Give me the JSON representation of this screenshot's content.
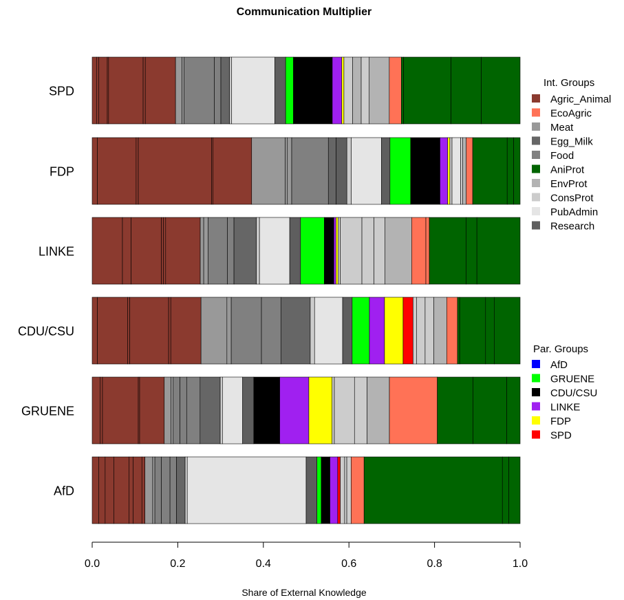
{
  "chart_data": {
    "type": "bar",
    "orientation": "horizontal",
    "stacked": true,
    "title": "Communication Multiplier",
    "xlabel": "Share of External Knowledge",
    "ylabel": "",
    "xlim": [
      0,
      1
    ],
    "x_ticks": [
      "0.0",
      "0.2",
      "0.4",
      "0.6",
      "0.8",
      "1.0"
    ],
    "categories": [
      "SPD",
      "FDP",
      "LINKE",
      "CDU/CSU",
      "GRUENE",
      "AfD"
    ],
    "legend_int": {
      "title": "Int. Groups",
      "items": [
        {
          "label": "Agric_Animal",
          "color": "#8B3A2F"
        },
        {
          "label": "EcoAgric",
          "color": "#FF7256"
        },
        {
          "label": "Meat",
          "color": "#999999"
        },
        {
          "label": "Egg_Milk",
          "color": "#666666"
        },
        {
          "label": "Food",
          "color": "#808080"
        },
        {
          "label": "AniProt",
          "color": "#006400"
        },
        {
          "label": "EnvProt",
          "color": "#B3B3B3"
        },
        {
          "label": "ConsProt",
          "color": "#CCCCCC"
        },
        {
          "label": "PubAdmin",
          "color": "#E5E5E5"
        },
        {
          "label": "Research",
          "color": "#5E5E5E"
        }
      ]
    },
    "legend_par": {
      "title": "Par. Groups",
      "items": [
        {
          "label": "AfD",
          "color": "#0000FF"
        },
        {
          "label": "GRUENE",
          "color": "#00FF00"
        },
        {
          "label": "CDU/CSU",
          "color": "#000000"
        },
        {
          "label": "LINKE",
          "color": "#A020F0"
        },
        {
          "label": "FDP",
          "color": "#FFFF00"
        },
        {
          "label": "SPD",
          "color": "#FF0000"
        }
      ]
    },
    "series": [
      {
        "category": "SPD",
        "segments": [
          [
            0.01,
            "#8B3A2F"
          ],
          [
            0.005,
            "#8B3A2F"
          ],
          [
            0.02,
            "#8B3A2F"
          ],
          [
            0.003,
            "#8B3A2F"
          ],
          [
            0.08,
            "#8B3A2F"
          ],
          [
            0.005,
            "#8B3A2F"
          ],
          [
            0.07,
            "#8B3A2F"
          ],
          [
            0.015,
            "#999999"
          ],
          [
            0.005,
            "#999999"
          ],
          [
            0.07,
            "#808080"
          ],
          [
            0.015,
            "#808080"
          ],
          [
            0.02,
            "#666666"
          ],
          [
            0.005,
            "#CCCCCC"
          ],
          [
            0.1,
            "#E5E5E5"
          ],
          [
            0.025,
            "#5E5E5E"
          ],
          [
            0.018,
            "#00FF00"
          ],
          [
            0.09,
            "#000000"
          ],
          [
            0.022,
            "#A020F0"
          ],
          [
            0.005,
            "#FFFF00"
          ],
          [
            0.02,
            "#CCCCCC"
          ],
          [
            0.02,
            "#B3B3B3"
          ],
          [
            0.018,
            "#CCCCCC"
          ],
          [
            0.047,
            "#B3B3B3"
          ],
          [
            0.028,
            "#FF7256"
          ],
          [
            0.005,
            "#006400"
          ],
          [
            0.11,
            "#006400"
          ],
          [
            0.07,
            "#006400"
          ],
          [
            0.09,
            "#006400"
          ]
        ]
      },
      {
        "category": "FDP",
        "segments": [
          [
            0.012,
            "#8B3A2F"
          ],
          [
            0.09,
            "#8B3A2F"
          ],
          [
            0.005,
            "#8B3A2F"
          ],
          [
            0.17,
            "#8B3A2F"
          ],
          [
            0.003,
            "#8B3A2F"
          ],
          [
            0.09,
            "#8B3A2F"
          ],
          [
            0.078,
            "#999999"
          ],
          [
            0.005,
            "#999999"
          ],
          [
            0.01,
            "#999999"
          ],
          [
            0.085,
            "#808080"
          ],
          [
            0.018,
            "#666666"
          ],
          [
            0.025,
            "#5E5E5E"
          ],
          [
            0.01,
            "#CCCCCC"
          ],
          [
            0.07,
            "#E5E5E5"
          ],
          [
            0.02,
            "#5E5E5E"
          ],
          [
            0.048,
            "#00FF00"
          ],
          [
            0.068,
            "#000000"
          ],
          [
            0.018,
            "#A020F0"
          ],
          [
            0.005,
            "#FFFF00"
          ],
          [
            0.005,
            "#CCCCCC"
          ],
          [
            0.02,
            "#E5E5E5"
          ],
          [
            0.005,
            "#CCCCCC"
          ],
          [
            0.008,
            "#B3B3B3"
          ],
          [
            0.015,
            "#FF7256"
          ],
          [
            0.08,
            "#006400"
          ],
          [
            0.015,
            "#006400"
          ],
          [
            0.015,
            "#006400"
          ]
        ]
      },
      {
        "category": "LINKE",
        "segments": [
          [
            0.07,
            "#8B3A2F"
          ],
          [
            0.02,
            "#8B3A2F"
          ],
          [
            0.07,
            "#8B3A2F"
          ],
          [
            0.005,
            "#8B3A2F"
          ],
          [
            0.005,
            "#8B3A2F"
          ],
          [
            0.08,
            "#8B3A2F"
          ],
          [
            0.008,
            "#999999"
          ],
          [
            0.01,
            "#999999"
          ],
          [
            0.045,
            "#808080"
          ],
          [
            0.015,
            "#808080"
          ],
          [
            0.052,
            "#666666"
          ],
          [
            0.007,
            "#CCCCCC"
          ],
          [
            0.07,
            "#E5E5E5"
          ],
          [
            0.025,
            "#5E5E5E"
          ],
          [
            0.055,
            "#00FF00"
          ],
          [
            0.022,
            "#000000"
          ],
          [
            0.005,
            "#A020F0"
          ],
          [
            0.005,
            "#FFFF00"
          ],
          [
            0.005,
            "#CCCCCC"
          ],
          [
            0.05,
            "#CCCCCC"
          ],
          [
            0.028,
            "#CCCCCC"
          ],
          [
            0.025,
            "#CCCCCC"
          ],
          [
            0.062,
            "#B3B3B3"
          ],
          [
            0.033,
            "#FF7256"
          ],
          [
            0.008,
            "#FF7256"
          ],
          [
            0.085,
            "#006400"
          ],
          [
            0.025,
            "#006400"
          ],
          [
            0.1,
            "#006400"
          ]
        ]
      },
      {
        "category": "CDU/CSU",
        "segments": [
          [
            0.012,
            "#8B3A2F"
          ],
          [
            0.07,
            "#8B3A2F"
          ],
          [
            0.005,
            "#8B3A2F"
          ],
          [
            0.09,
            "#8B3A2F"
          ],
          [
            0.005,
            "#8B3A2F"
          ],
          [
            0.07,
            "#8B3A2F"
          ],
          [
            0.06,
            "#999999"
          ],
          [
            0.01,
            "#999999"
          ],
          [
            0.07,
            "#808080"
          ],
          [
            0.045,
            "#808080"
          ],
          [
            0.068,
            "#666666"
          ],
          [
            0.01,
            "#CCCCCC"
          ],
          [
            0.065,
            "#E5E5E5"
          ],
          [
            0.022,
            "#5E5E5E"
          ],
          [
            0.04,
            "#00FF00"
          ],
          [
            0.035,
            "#A020F0"
          ],
          [
            0.043,
            "#FFFF00"
          ],
          [
            0.023,
            "#FF0000"
          ],
          [
            0.008,
            "#CCCCCC"
          ],
          [
            0.02,
            "#CCCCCC"
          ],
          [
            0.02,
            "#CCCCCC"
          ],
          [
            0.03,
            "#B3B3B3"
          ],
          [
            0.025,
            "#FF7256"
          ],
          [
            0.005,
            "#006400"
          ],
          [
            0.06,
            "#006400"
          ],
          [
            0.02,
            "#006400"
          ],
          [
            0.06,
            "#006400"
          ]
        ]
      },
      {
        "category": "GRUENE",
        "segments": [
          [
            0.018,
            "#8B3A2F"
          ],
          [
            0.005,
            "#8B3A2F"
          ],
          [
            0.08,
            "#8B3A2F"
          ],
          [
            0.003,
            "#8B3A2F"
          ],
          [
            0.055,
            "#8B3A2F"
          ],
          [
            0.015,
            "#999999"
          ],
          [
            0.005,
            "#999999"
          ],
          [
            0.015,
            "#808080"
          ],
          [
            0.015,
            "#808080"
          ],
          [
            0.03,
            "#808080"
          ],
          [
            0.045,
            "#666666"
          ],
          [
            0.005,
            "#CCCCCC"
          ],
          [
            0.045,
            "#E5E5E5"
          ],
          [
            0.025,
            "#5E5E5E"
          ],
          [
            0.058,
            "#000000"
          ],
          [
            0.065,
            "#A020F0"
          ],
          [
            0.052,
            "#FFFF00"
          ],
          [
            0.005,
            "#CCCCCC"
          ],
          [
            0.045,
            "#CCCCCC"
          ],
          [
            0.028,
            "#CCCCCC"
          ],
          [
            0.05,
            "#B3B3B3"
          ],
          [
            0.107,
            "#FF7256"
          ],
          [
            0.08,
            "#006400"
          ],
          [
            0.075,
            "#006400"
          ],
          [
            0.03,
            "#006400"
          ]
        ]
      },
      {
        "category": "AfD",
        "segments": [
          [
            0.015,
            "#8B3A2F"
          ],
          [
            0.015,
            "#8B3A2F"
          ],
          [
            0.02,
            "#8B3A2F"
          ],
          [
            0.035,
            "#8B3A2F"
          ],
          [
            0.01,
            "#8B3A2F"
          ],
          [
            0.02,
            "#8B3A2F"
          ],
          [
            0.007,
            "#8B3A2F"
          ],
          [
            0.018,
            "#999999"
          ],
          [
            0.005,
            "#999999"
          ],
          [
            0.015,
            "#808080"
          ],
          [
            0.02,
            "#808080"
          ],
          [
            0.015,
            "#808080"
          ],
          [
            0.02,
            "#666666"
          ],
          [
            0.005,
            "#CCCCCC"
          ],
          [
            0.275,
            "#E5E5E5"
          ],
          [
            0.025,
            "#5E5E5E"
          ],
          [
            0.01,
            "#00FF00"
          ],
          [
            0.02,
            "#000000"
          ],
          [
            0.018,
            "#A020F0"
          ],
          [
            0.006,
            "#FF0000"
          ],
          [
            0.01,
            "#CCCCCC"
          ],
          [
            0.005,
            "#CCCCCC"
          ],
          [
            0.01,
            "#CCCCCC"
          ],
          [
            0.03,
            "#FF7256"
          ],
          [
            0.32,
            "#006400"
          ],
          [
            0.015,
            "#006400"
          ],
          [
            0.026,
            "#006400"
          ]
        ]
      }
    ]
  }
}
